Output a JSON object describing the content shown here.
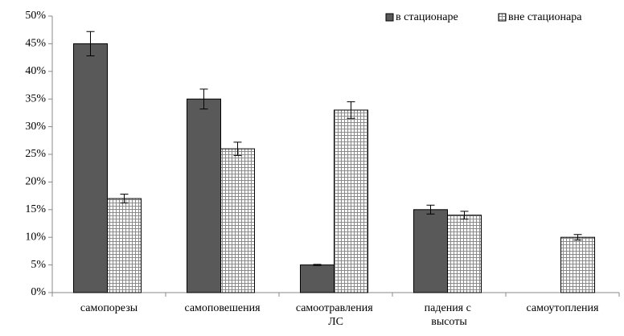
{
  "chart_data": {
    "type": "bar",
    "categories": [
      "самопорезы",
      "самоповешения",
      "самоотравления ЛС",
      "падения с высоты",
      "самоутопления"
    ],
    "series": [
      {
        "name": "в стационаре",
        "color": "#595959",
        "values": [
          45,
          35,
          5,
          15,
          null
        ],
        "errors": [
          2.2,
          1.8,
          0.1,
          0.8,
          null
        ]
      },
      {
        "name": "вне стационара",
        "color": "#808080",
        "pattern": "grid",
        "values": [
          17,
          26,
          33,
          14,
          10
        ],
        "errors": [
          0.8,
          1.2,
          1.5,
          0.7,
          0.5
        ]
      }
    ],
    "ylim": [
      0,
      50
    ],
    "yticks": [
      {
        "value": 0,
        "label": "0%"
      },
      {
        "value": 5,
        "label": "5%"
      },
      {
        "value": 10,
        "label": "10%"
      },
      {
        "value": 15,
        "label": "15%"
      },
      {
        "value": 20,
        "label": "20%"
      },
      {
        "value": 25,
        "label": "25%"
      },
      {
        "value": 30,
        "label": "30%"
      },
      {
        "value": 35,
        "label": "35%"
      },
      {
        "value": 40,
        "label": "40%"
      },
      {
        "value": 45,
        "label": "45%"
      },
      {
        "value": 50,
        "label": "50%"
      }
    ],
    "grid": false,
    "legend": "top-right"
  }
}
